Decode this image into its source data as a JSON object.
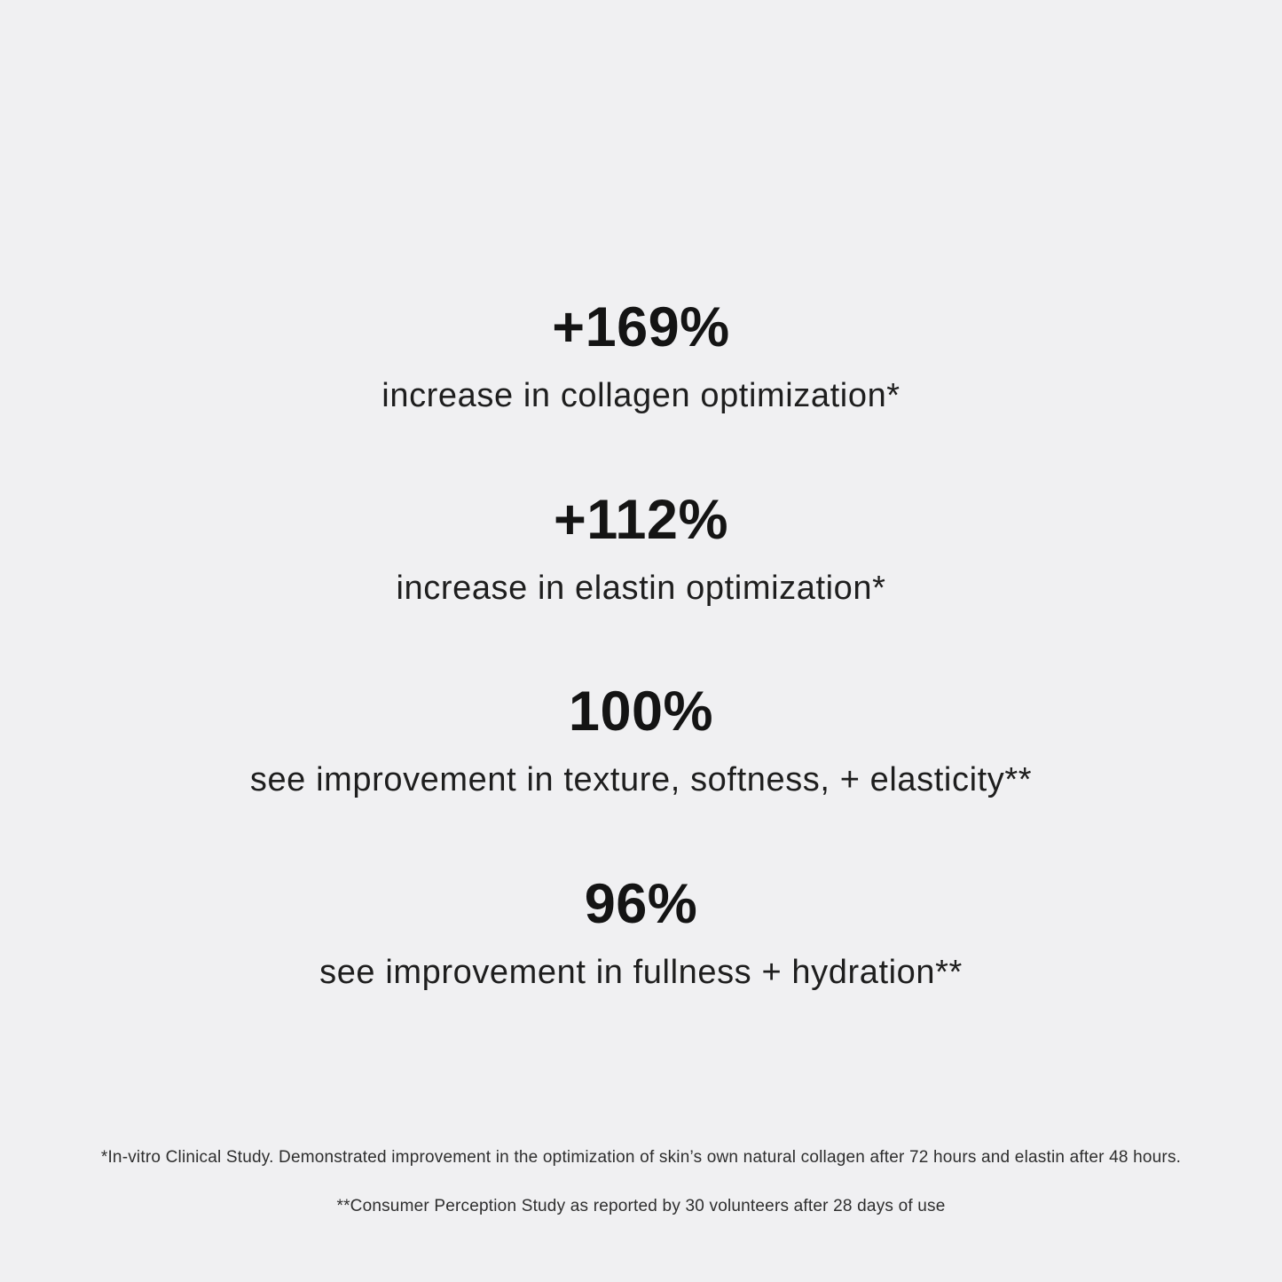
{
  "panel": {
    "background_color": "#f0f0f2",
    "text_color": "#141414"
  },
  "stats": [
    {
      "value": "+169%",
      "caption": "increase in collagen optimization*"
    },
    {
      "value": "+112%",
      "caption": "increase in elastin optimization*"
    },
    {
      "value": "100%",
      "caption": "see improvement in texture, softness, + elasticity**"
    },
    {
      "value": "96%",
      "caption": "see improvement in fullness + hydration**"
    }
  ],
  "footnotes": [
    "*In-vitro Clinical Study. Demonstrated improvement in the optimization of skin’s own natural collagen after 72 hours and elastin after 48 hours.",
    "**Consumer Perception Study as reported by 30 volunteers after 28 days of use"
  ]
}
